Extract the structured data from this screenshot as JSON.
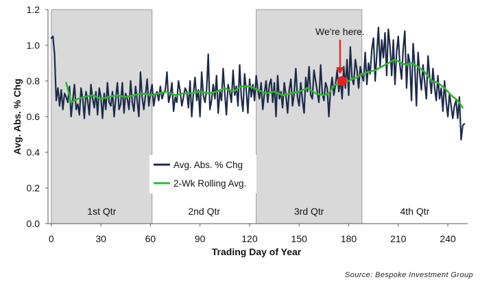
{
  "chart_data": {
    "type": "line",
    "xlabel": "Trading Day of Year",
    "ylabel": "Avg. Abs. % Chg",
    "xlim": [
      -2,
      252
    ],
    "ylim": [
      0,
      1.2
    ],
    "x_ticks": [
      0,
      30,
      60,
      90,
      120,
      150,
      180,
      210,
      240
    ],
    "y_ticks": [
      0.0,
      0.2,
      0.4,
      0.6,
      0.8,
      1.0,
      1.2
    ],
    "y_tick_labels": [
      "0.0",
      "0.2",
      "0.4",
      "0.6",
      "0.8",
      "1.0",
      "1.2"
    ],
    "grid": "none",
    "legend_placement": "center-left",
    "quarters": [
      {
        "label": "1st Qtr",
        "start": 0,
        "end": 61,
        "shaded": true
      },
      {
        "label": "2nd Qtr",
        "start": 61,
        "end": 124,
        "shaded": false
      },
      {
        "label": "3rd Qtr",
        "start": 124,
        "end": 188,
        "shaded": true
      },
      {
        "label": "4th Qtr",
        "start": 188,
        "end": 252,
        "shaded": false
      }
    ],
    "series": [
      {
        "name": "Avg. Abs. % Chg",
        "color": "#1c2a4a",
        "x": [
          0,
          1,
          2,
          3,
          4,
          5,
          6,
          7,
          8,
          9,
          10,
          11,
          12,
          13,
          14,
          15,
          16,
          17,
          18,
          19,
          20,
          21,
          22,
          23,
          24,
          25,
          26,
          27,
          28,
          29,
          30,
          31,
          32,
          33,
          34,
          35,
          36,
          37,
          38,
          39,
          40,
          41,
          42,
          43,
          44,
          45,
          46,
          47,
          48,
          49,
          50,
          51,
          52,
          53,
          54,
          55,
          56,
          57,
          58,
          59,
          60,
          61,
          62,
          63,
          64,
          65,
          66,
          67,
          68,
          69,
          70,
          71,
          72,
          73,
          74,
          75,
          76,
          77,
          78,
          79,
          80,
          81,
          82,
          83,
          84,
          85,
          86,
          87,
          88,
          89,
          90,
          91,
          92,
          93,
          94,
          95,
          96,
          97,
          98,
          99,
          100,
          101,
          102,
          103,
          104,
          105,
          106,
          107,
          108,
          109,
          110,
          111,
          112,
          113,
          114,
          115,
          116,
          117,
          118,
          119,
          120,
          121,
          122,
          123,
          124,
          125,
          126,
          127,
          128,
          129,
          130,
          131,
          132,
          133,
          134,
          135,
          136,
          137,
          138,
          139,
          140,
          141,
          142,
          143,
          144,
          145,
          146,
          147,
          148,
          149,
          150,
          151,
          152,
          153,
          154,
          155,
          156,
          157,
          158,
          159,
          160,
          161,
          162,
          163,
          164,
          165,
          166,
          167,
          168,
          169,
          170,
          171,
          172,
          173,
          174,
          175,
          176,
          177,
          178,
          179,
          180,
          181,
          182,
          183,
          184,
          185,
          186,
          187,
          188,
          189,
          190,
          191,
          192,
          193,
          194,
          195,
          196,
          197,
          198,
          199,
          200,
          201,
          202,
          203,
          204,
          205,
          206,
          207,
          208,
          209,
          210,
          211,
          212,
          213,
          214,
          215,
          216,
          217,
          218,
          219,
          220,
          221,
          222,
          223,
          224,
          225,
          226,
          227,
          228,
          229,
          230,
          231,
          232,
          233,
          234,
          235,
          236,
          237,
          238,
          239,
          240,
          241,
          242,
          243,
          244,
          245,
          246,
          247,
          248,
          249,
          250
        ],
        "values": [
          1.04,
          1.05,
          0.95,
          0.69,
          0.76,
          0.66,
          0.75,
          0.64,
          0.73,
          0.71,
          0.68,
          0.77,
          0.6,
          0.69,
          0.78,
          0.64,
          0.67,
          0.61,
          0.76,
          0.7,
          0.59,
          0.74,
          0.69,
          0.61,
          0.78,
          0.7,
          0.65,
          0.74,
          0.61,
          0.76,
          0.71,
          0.59,
          0.73,
          0.64,
          0.79,
          0.68,
          0.66,
          0.74,
          0.6,
          0.7,
          0.79,
          0.64,
          0.67,
          0.79,
          0.62,
          0.73,
          0.7,
          0.64,
          0.8,
          0.68,
          0.63,
          0.77,
          0.69,
          0.6,
          0.85,
          0.71,
          0.64,
          0.72,
          0.81,
          0.66,
          0.73,
          0.78,
          0.66,
          0.72,
          0.74,
          0.69,
          0.77,
          0.7,
          0.73,
          0.75,
          0.85,
          0.68,
          0.72,
          0.79,
          0.63,
          0.71,
          0.68,
          0.8,
          0.74,
          0.66,
          0.71,
          0.76,
          0.74,
          0.65,
          0.8,
          0.6,
          0.73,
          0.82,
          0.69,
          0.75,
          0.6,
          0.85,
          0.72,
          0.68,
          0.75,
          0.95,
          0.64,
          0.69,
          0.78,
          0.7,
          0.83,
          0.62,
          0.74,
          0.69,
          0.87,
          0.73,
          0.61,
          0.78,
          0.74,
          0.68,
          0.86,
          0.72,
          0.77,
          0.66,
          0.89,
          0.71,
          0.63,
          0.84,
          0.75,
          0.62,
          0.81,
          0.71,
          0.78,
          0.69,
          0.83,
          0.75,
          0.7,
          0.79,
          0.64,
          0.73,
          0.8,
          0.68,
          0.78,
          0.81,
          0.68,
          0.79,
          0.6,
          0.83,
          0.7,
          0.74,
          0.65,
          0.79,
          0.72,
          0.62,
          0.75,
          0.81,
          0.66,
          0.73,
          0.87,
          0.71,
          0.66,
          0.79,
          0.69,
          0.62,
          0.82,
          0.74,
          0.88,
          0.72,
          0.7,
          0.86,
          0.8,
          0.74,
          0.68,
          0.89,
          0.73,
          0.69,
          0.79,
          0.76,
          0.6,
          0.75,
          0.82,
          0.72,
          0.78,
          0.86,
          0.74,
          0.81,
          0.7,
          0.88,
          0.76,
          0.92,
          0.72,
          0.99,
          0.82,
          0.78,
          0.92,
          0.86,
          0.76,
          0.88,
          0.83,
          0.8,
          0.96,
          0.78,
          0.9,
          0.84,
          0.98,
          1.04,
          0.8,
          0.95,
          1.1,
          0.88,
          1.03,
          0.93,
          1.07,
          0.83,
          1.09,
          0.99,
          0.83,
          1.03,
          0.78,
          0.96,
          1.05,
          0.89,
          0.81,
          0.98,
          1.08,
          0.76,
          0.95,
          0.9,
          0.69,
          1.01,
          0.88,
          0.66,
          0.96,
          0.84,
          0.75,
          0.89,
          0.79,
          0.7,
          0.94,
          0.82,
          0.73,
          0.87,
          0.76,
          0.69,
          0.83,
          0.7,
          0.76,
          0.63,
          0.8,
          0.68,
          0.6,
          0.73,
          0.66,
          0.59,
          0.66,
          0.69,
          0.59,
          0.71,
          0.47,
          0.55,
          0.56
        ]
      },
      {
        "name": "2-Wk Rolling Avg.",
        "color": "#2eb82e",
        "x": [
          9,
          12,
          16,
          20,
          25,
          30,
          35,
          40,
          45,
          50,
          55,
          60,
          65,
          70,
          75,
          80,
          85,
          90,
          95,
          100,
          105,
          110,
          115,
          120,
          125,
          130,
          135,
          140,
          145,
          150,
          155,
          160,
          165,
          168,
          170,
          172,
          175,
          178,
          182,
          185,
          188,
          192,
          196,
          200,
          204,
          208,
          212,
          215,
          218,
          222,
          226,
          230,
          234,
          238,
          242,
          246,
          249
        ],
        "values": [
          0.79,
          0.68,
          0.7,
          0.71,
          0.72,
          0.7,
          0.71,
          0.72,
          0.71,
          0.72,
          0.73,
          0.72,
          0.73,
          0.74,
          0.72,
          0.73,
          0.73,
          0.74,
          0.73,
          0.74,
          0.76,
          0.74,
          0.77,
          0.77,
          0.75,
          0.73,
          0.74,
          0.72,
          0.73,
          0.74,
          0.76,
          0.73,
          0.72,
          0.73,
          0.76,
          0.78,
          0.78,
          0.79,
          0.81,
          0.82,
          0.84,
          0.85,
          0.86,
          0.88,
          0.9,
          0.92,
          0.9,
          0.89,
          0.9,
          0.88,
          0.85,
          0.8,
          0.79,
          0.76,
          0.72,
          0.69,
          0.65
        ]
      }
    ],
    "annotations": [
      {
        "text": "We're here.",
        "x": 176,
        "y": 0.8,
        "color": "#e8201f"
      }
    ],
    "source": "Source: Bespoke Investment Group"
  }
}
